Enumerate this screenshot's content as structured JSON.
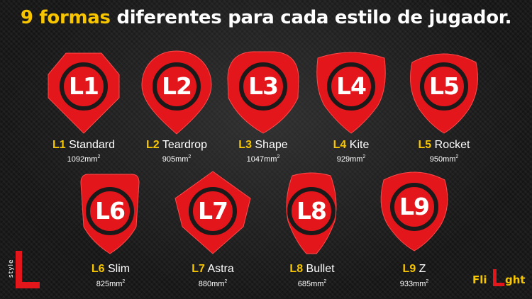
{
  "title": {
    "highlight": "9 formas",
    "rest": "diferentes para cada estilo de jugador."
  },
  "colors": {
    "accent": "#f7c600",
    "flight_red": "#e3161b",
    "ring": "#1a1a1a"
  },
  "flights": [
    {
      "code": "L1",
      "name": "Standard",
      "area": "1092",
      "unit": "mm",
      "exp": "2"
    },
    {
      "code": "L2",
      "name": "Teardrop",
      "area": "905",
      "unit": "mm",
      "exp": "2"
    },
    {
      "code": "L3",
      "name": "Shape",
      "area": "1047",
      "unit": "mm",
      "exp": "2"
    },
    {
      "code": "L4",
      "name": "Kite",
      "area": "929",
      "unit": "mm",
      "exp": "2"
    },
    {
      "code": "L5",
      "name": "Rocket",
      "area": "950",
      "unit": "mm",
      "exp": "2"
    },
    {
      "code": "L6",
      "name": "Slim",
      "area": "825",
      "unit": "mm",
      "exp": "2"
    },
    {
      "code": "L7",
      "name": "Astra",
      "area": "880",
      "unit": "mm",
      "exp": "2"
    },
    {
      "code": "L8",
      "name": "Bullet",
      "area": "685",
      "unit": "mm",
      "exp": "2"
    },
    {
      "code": "L9",
      "name": "Z",
      "area": "933",
      "unit": "mm",
      "exp": "2"
    }
  ],
  "logos": {
    "left_letter": "L",
    "left_word": "style",
    "right_prefix": "Fli",
    "right_letter": "L",
    "right_suffix": "ght"
  }
}
